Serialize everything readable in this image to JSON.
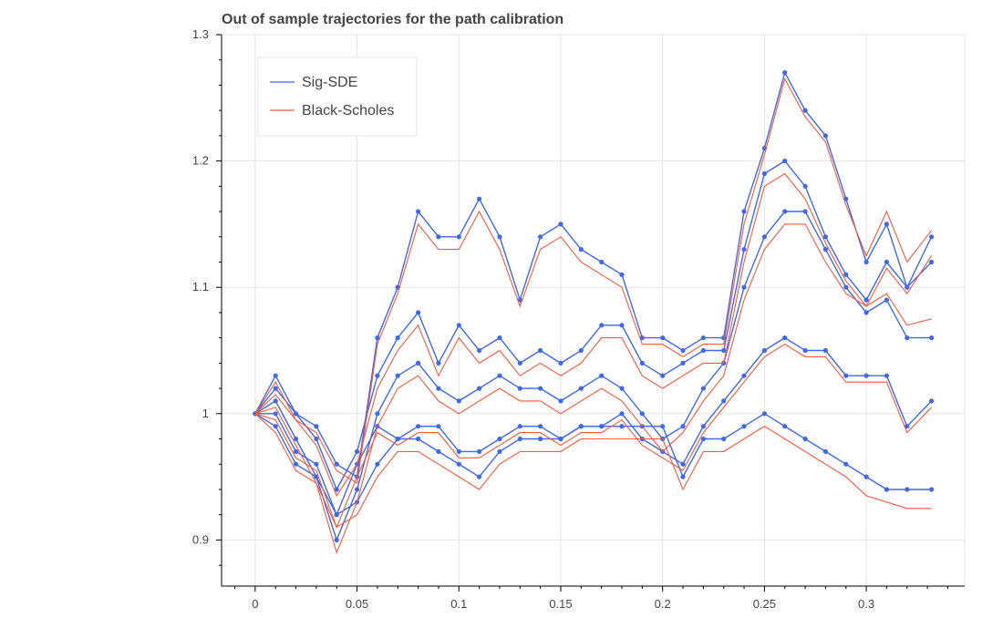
{
  "chart_data": {
    "type": "line",
    "title": "Out of sample trajectories for the path calibration",
    "xlabel": "",
    "ylabel": "",
    "xlim": [
      -0.0165,
      0.3483
    ],
    "ylim": [
      0.8635,
      1.3
    ],
    "x_ticks": [
      0,
      0.05,
      0.1,
      0.15,
      0.2,
      0.25,
      0.3
    ],
    "x_tick_labels": [
      "0",
      "0.05",
      "0.1",
      "0.15",
      "0.2",
      "0.25",
      "0.3"
    ],
    "y_ticks": [
      0.9,
      1.0,
      1.1,
      1.2,
      1.3
    ],
    "y_tick_labels": [
      "0.9",
      "1",
      "1.1",
      "1.2",
      "1.3"
    ],
    "grid": true,
    "legend_position": "top-left",
    "x": [
      0,
      0.01,
      0.02,
      0.03,
      0.04,
      0.05,
      0.06,
      0.07,
      0.08,
      0.09,
      0.1,
      0.11,
      0.12,
      0.13,
      0.14,
      0.15,
      0.16,
      0.17,
      0.18,
      0.19,
      0.2,
      0.21,
      0.22,
      0.23,
      0.24,
      0.25,
      0.26,
      0.27,
      0.28,
      0.29,
      0.3,
      0.31,
      0.32,
      0.332
    ],
    "series": [
      {
        "name": "Sig-SDE",
        "color": "#4169e1",
        "marker": "circle",
        "paths": [
          [
            1.0,
            1.02,
            1.0,
            0.99,
            0.96,
            0.95,
            1.06,
            1.1,
            1.16,
            1.14,
            1.14,
            1.17,
            1.14,
            1.09,
            1.14,
            1.15,
            1.13,
            1.12,
            1.11,
            1.06,
            1.06,
            1.05,
            1.06,
            1.06,
            1.16,
            1.21,
            1.27,
            1.24,
            1.22,
            1.17,
            1.12,
            1.15,
            1.1,
            1.14
          ],
          [
            1.0,
            1.03,
            1.0,
            0.98,
            0.94,
            0.97,
            1.03,
            1.06,
            1.08,
            1.04,
            1.07,
            1.05,
            1.06,
            1.04,
            1.05,
            1.04,
            1.05,
            1.07,
            1.07,
            1.04,
            1.03,
            1.04,
            1.05,
            1.05,
            1.13,
            1.19,
            1.2,
            1.18,
            1.14,
            1.11,
            1.09,
            1.12,
            1.1,
            1.12
          ],
          [
            1.0,
            1.01,
            0.98,
            0.95,
            0.9,
            0.94,
            1.0,
            1.03,
            1.04,
            1.02,
            1.01,
            1.02,
            1.03,
            1.02,
            1.02,
            1.01,
            1.02,
            1.03,
            1.02,
            1.0,
            0.98,
            0.99,
            1.02,
            1.04,
            1.1,
            1.14,
            1.16,
            1.16,
            1.13,
            1.1,
            1.08,
            1.09,
            1.06,
            1.06
          ],
          [
            1.0,
            1.0,
            0.97,
            0.96,
            0.92,
            0.96,
            0.99,
            0.98,
            0.99,
            0.99,
            0.97,
            0.97,
            0.98,
            0.99,
            0.99,
            0.98,
            0.99,
            0.99,
            1.0,
            0.98,
            0.97,
            0.96,
            0.99,
            1.01,
            1.03,
            1.05,
            1.06,
            1.05,
            1.05,
            1.03,
            1.03,
            1.03,
            0.99,
            1.01
          ],
          [
            1.0,
            0.99,
            0.96,
            0.95,
            0.92,
            0.93,
            0.96,
            0.98,
            0.98,
            0.97,
            0.96,
            0.95,
            0.97,
            0.98,
            0.98,
            0.98,
            0.99,
            0.99,
            0.99,
            0.99,
            0.99,
            0.95,
            0.98,
            0.98,
            0.99,
            1.0,
            0.99,
            0.98,
            0.97,
            0.96,
            0.95,
            0.94,
            0.94,
            0.94
          ]
        ]
      },
      {
        "name": "Black-Scholes",
        "color": "#f15a3e",
        "marker": "none",
        "paths": [
          [
            1.0,
            1.015,
            0.995,
            0.985,
            0.955,
            0.945,
            1.055,
            1.095,
            1.15,
            1.13,
            1.13,
            1.16,
            1.13,
            1.085,
            1.13,
            1.14,
            1.12,
            1.11,
            1.1,
            1.055,
            1.055,
            1.045,
            1.055,
            1.055,
            1.15,
            1.205,
            1.265,
            1.235,
            1.215,
            1.165,
            1.125,
            1.16,
            1.12,
            1.145
          ],
          [
            1.0,
            1.025,
            0.995,
            0.975,
            0.935,
            0.96,
            1.02,
            1.05,
            1.07,
            1.03,
            1.06,
            1.04,
            1.05,
            1.03,
            1.04,
            1.03,
            1.04,
            1.06,
            1.06,
            1.03,
            1.02,
            1.03,
            1.04,
            1.04,
            1.12,
            1.18,
            1.19,
            1.17,
            1.135,
            1.105,
            1.085,
            1.115,
            1.095,
            1.125
          ],
          [
            1.0,
            1.005,
            0.975,
            0.945,
            0.89,
            0.93,
            0.99,
            1.02,
            1.03,
            1.01,
            1.0,
            1.01,
            1.02,
            1.01,
            1.01,
            1.0,
            1.01,
            1.02,
            1.01,
            0.99,
            0.97,
            0.985,
            1.01,
            1.03,
            1.09,
            1.13,
            1.15,
            1.15,
            1.12,
            1.095,
            1.085,
            1.095,
            1.07,
            1.075
          ],
          [
            1.0,
            0.995,
            0.965,
            0.955,
            0.91,
            0.95,
            0.985,
            0.975,
            0.985,
            0.985,
            0.965,
            0.965,
            0.975,
            0.985,
            0.985,
            0.975,
            0.985,
            0.985,
            0.995,
            0.975,
            0.965,
            0.955,
            0.985,
            1.005,
            1.025,
            1.045,
            1.055,
            1.045,
            1.045,
            1.025,
            1.025,
            1.025,
            0.985,
            1.005
          ],
          [
            1.0,
            0.985,
            0.955,
            0.945,
            0.91,
            0.92,
            0.95,
            0.97,
            0.97,
            0.96,
            0.95,
            0.94,
            0.96,
            0.97,
            0.97,
            0.97,
            0.98,
            0.98,
            0.98,
            0.98,
            0.98,
            0.94,
            0.97,
            0.97,
            0.98,
            0.99,
            0.98,
            0.97,
            0.96,
            0.95,
            0.935,
            0.93,
            0.925,
            0.925
          ]
        ]
      }
    ],
    "legend": [
      {
        "label": "Sig-SDE",
        "color": "#4169e1"
      },
      {
        "label": "Black-Scholes",
        "color": "#f15a3e"
      }
    ]
  }
}
